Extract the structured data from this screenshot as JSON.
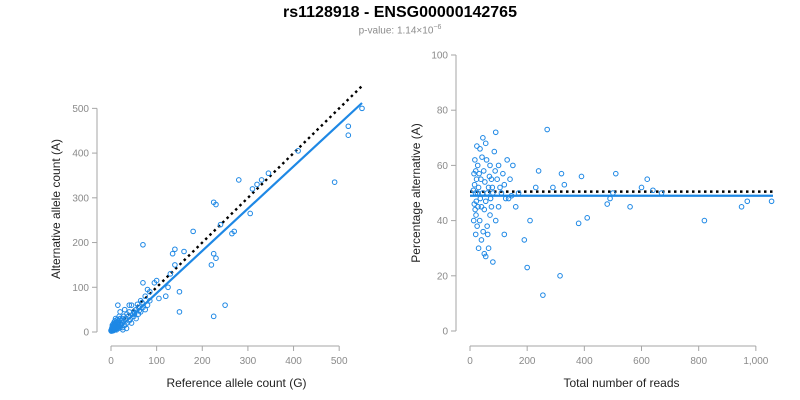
{
  "header": {
    "title": "rs1128918 - ENSG00000142765",
    "pvalue_prefix": "p-value: 1.14×10",
    "pvalue_exponent": "−6"
  },
  "colors": {
    "points": "#1e88e5",
    "fit_line": "#1e88e5",
    "reference_line": "#000000",
    "axis": "#a6a6a6",
    "tick_text": "#8a8a8a"
  },
  "chart_data": [
    {
      "type": "scatter",
      "title": "",
      "xlabel": "Reference allele count (G)",
      "ylabel": "Alternative allele count (A)",
      "xlim": [
        0,
        550
      ],
      "ylim": [
        0,
        550
      ],
      "xticks": [
        0,
        100,
        200,
        300,
        400,
        500
      ],
      "xtick_labels": [
        "0",
        "100",
        "200",
        "300",
        "400",
        "500"
      ],
      "yticks": [
        0,
        100,
        200,
        300,
        400,
        500
      ],
      "ytick_labels": [
        "0",
        "100",
        "200",
        "300",
        "400",
        "500"
      ],
      "grid": false,
      "points": [
        [
          550,
          500
        ],
        [
          520,
          460
        ],
        [
          520,
          440
        ],
        [
          490,
          335
        ],
        [
          410,
          405
        ],
        [
          345,
          355
        ],
        [
          330,
          340
        ],
        [
          320,
          330
        ],
        [
          310,
          320
        ],
        [
          305,
          265
        ],
        [
          280,
          340
        ],
        [
          230,
          285
        ],
        [
          225,
          290
        ],
        [
          220,
          150
        ],
        [
          225,
          175
        ],
        [
          230,
          165
        ],
        [
          225,
          35
        ],
        [
          250,
          60
        ],
        [
          265,
          220
        ],
        [
          270,
          225
        ],
        [
          240,
          240
        ],
        [
          180,
          225
        ],
        [
          160,
          180
        ],
        [
          140,
          185
        ],
        [
          135,
          175
        ],
        [
          140,
          150
        ],
        [
          130,
          130
        ],
        [
          125,
          100
        ],
        [
          150,
          90
        ],
        [
          150,
          45
        ],
        [
          120,
          80
        ],
        [
          105,
          75
        ],
        [
          100,
          115
        ],
        [
          95,
          110
        ],
        [
          85,
          90
        ],
        [
          85,
          70
        ],
        [
          70,
          195
        ],
        [
          70,
          110
        ],
        [
          75,
          80
        ],
        [
          80,
          95
        ],
        [
          80,
          60
        ],
        [
          75,
          50
        ],
        [
          70,
          55
        ],
        [
          65,
          70
        ],
        [
          65,
          45
        ],
        [
          60,
          40
        ],
        [
          60,
          55
        ],
        [
          55,
          30
        ],
        [
          55,
          50
        ],
        [
          50,
          35
        ],
        [
          50,
          45
        ],
        [
          45,
          20
        ],
        [
          45,
          60
        ],
        [
          40,
          25
        ],
        [
          40,
          45
        ],
        [
          40,
          60
        ],
        [
          38,
          35
        ],
        [
          35,
          20
        ],
        [
          35,
          40
        ],
        [
          32,
          30
        ],
        [
          30,
          15
        ],
        [
          30,
          50
        ],
        [
          28,
          25
        ],
        [
          28,
          35
        ],
        [
          25,
          10
        ],
        [
          25,
          20
        ],
        [
          25,
          30
        ],
        [
          22,
          15
        ],
        [
          22,
          25
        ],
        [
          20,
          10
        ],
        [
          20,
          18
        ],
        [
          20,
          30
        ],
        [
          18,
          12
        ],
        [
          18,
          22
        ],
        [
          18,
          35
        ],
        [
          16,
          8
        ],
        [
          16,
          16
        ],
        [
          16,
          25
        ],
        [
          15,
          20
        ],
        [
          14,
          12
        ],
        [
          14,
          28
        ],
        [
          13,
          18
        ],
        [
          12,
          10
        ],
        [
          12,
          22
        ],
        [
          12,
          5
        ],
        [
          11,
          15
        ],
        [
          10,
          8
        ],
        [
          10,
          20
        ],
        [
          10,
          30
        ],
        [
          9,
          12
        ],
        [
          9,
          25
        ],
        [
          8,
          5
        ],
        [
          8,
          15
        ],
        [
          8,
          18
        ],
        [
          7,
          10
        ],
        [
          7,
          22
        ],
        [
          6,
          6
        ],
        [
          6,
          14
        ],
        [
          5,
          10
        ],
        [
          5,
          18
        ],
        [
          5,
          3
        ],
        [
          4,
          8
        ],
        [
          4,
          12
        ],
        [
          3,
          6
        ],
        [
          3,
          15
        ],
        [
          2,
          4
        ],
        [
          2,
          9
        ],
        [
          1,
          2
        ],
        [
          1,
          5
        ],
        [
          0,
          3
        ],
        [
          15,
          60
        ],
        [
          20,
          45
        ],
        [
          26,
          5
        ],
        [
          34,
          8
        ],
        [
          42,
          28
        ],
        [
          48,
          40
        ],
        [
          52,
          42
        ],
        [
          58,
          62
        ],
        [
          62,
          48
        ],
        [
          68,
          66
        ]
      ],
      "fit_line": [
        [
          8,
          0
        ],
        [
          550,
          512
        ]
      ],
      "reference_line": [
        [
          0,
          0
        ],
        [
          550,
          550
        ]
      ]
    },
    {
      "type": "scatter",
      "title": "",
      "xlabel": "Total number of reads",
      "ylabel": "Percentage alternative (A)",
      "xlim": [
        0,
        1060
      ],
      "ylim": [
        0,
        100
      ],
      "xticks": [
        0,
        200,
        400,
        600,
        800,
        1000
      ],
      "xtick_labels": [
        "0",
        "200",
        "400",
        "600",
        "800",
        "1,000"
      ],
      "yticks": [
        0,
        20,
        40,
        60,
        80,
        100
      ],
      "ytick_labels": [
        "0",
        "20",
        "40",
        "60",
        "80",
        "100"
      ],
      "grid": false,
      "points": [
        [
          1055,
          47
        ],
        [
          970,
          47
        ],
        [
          950,
          45
        ],
        [
          820,
          40
        ],
        [
          670,
          50
        ],
        [
          640,
          51
        ],
        [
          620,
          55
        ],
        [
          600,
          52
        ],
        [
          560,
          45
        ],
        [
          510,
          57
        ],
        [
          500,
          50
        ],
        [
          490,
          48
        ],
        [
          480,
          46
        ],
        [
          410,
          41
        ],
        [
          390,
          56
        ],
        [
          380,
          39
        ],
        [
          330,
          53
        ],
        [
          320,
          57
        ],
        [
          315,
          20
        ],
        [
          290,
          52
        ],
        [
          270,
          73
        ],
        [
          255,
          13
        ],
        [
          240,
          58
        ],
        [
          230,
          52
        ],
        [
          210,
          40
        ],
        [
          200,
          23
        ],
        [
          190,
          33
        ],
        [
          170,
          50
        ],
        [
          160,
          45
        ],
        [
          150,
          60
        ],
        [
          140,
          55
        ],
        [
          135,
          48
        ],
        [
          130,
          62
        ],
        [
          120,
          53
        ],
        [
          120,
          35
        ],
        [
          110,
          50
        ],
        [
          100,
          60
        ],
        [
          100,
          45
        ],
        [
          95,
          55
        ],
        [
          90,
          72
        ],
        [
          90,
          40
        ],
        [
          85,
          65
        ],
        [
          80,
          50
        ],
        [
          80,
          25
        ],
        [
          75,
          55
        ],
        [
          75,
          45
        ],
        [
          70,
          60
        ],
        [
          70,
          42
        ],
        [
          65,
          52
        ],
        [
          65,
          30
        ],
        [
          60,
          50
        ],
        [
          60,
          38
        ],
        [
          58,
          62
        ],
        [
          55,
          47
        ],
        [
          55,
          68
        ],
        [
          52,
          54
        ],
        [
          50,
          44
        ],
        [
          50,
          28
        ],
        [
          48,
          58
        ],
        [
          46,
          36
        ],
        [
          45,
          70
        ],
        [
          44,
          50
        ],
        [
          42,
          63
        ],
        [
          40,
          45
        ],
        [
          40,
          33
        ],
        [
          38,
          55
        ],
        [
          36,
          48
        ],
        [
          35,
          66
        ],
        [
          34,
          40
        ],
        [
          32,
          57
        ],
        [
          30,
          52
        ],
        [
          30,
          30
        ],
        [
          28,
          45
        ],
        [
          27,
          60
        ],
        [
          26,
          50
        ],
        [
          25,
          38
        ],
        [
          24,
          67
        ],
        [
          23,
          55
        ],
        [
          22,
          47
        ],
        [
          21,
          42
        ],
        [
          20,
          58
        ],
        [
          20,
          35
        ],
        [
          19,
          50
        ],
        [
          18,
          44
        ],
        [
          17,
          62
        ],
        [
          16,
          53
        ],
        [
          15,
          46
        ],
        [
          14,
          57
        ],
        [
          13,
          40
        ],
        [
          12,
          51
        ],
        [
          55,
          27
        ],
        [
          62,
          35
        ],
        [
          68,
          56
        ],
        [
          72,
          48
        ],
        [
          78,
          52
        ],
        [
          88,
          58
        ],
        [
          105,
          52
        ],
        [
          115,
          57
        ],
        [
          125,
          48
        ],
        [
          145,
          49
        ]
      ],
      "fit_line": [
        [
          0,
          49
        ],
        [
          1060,
          49
        ]
      ],
      "reference_line": [
        [
          0,
          50.5
        ],
        [
          1060,
          50.5
        ]
      ]
    }
  ]
}
